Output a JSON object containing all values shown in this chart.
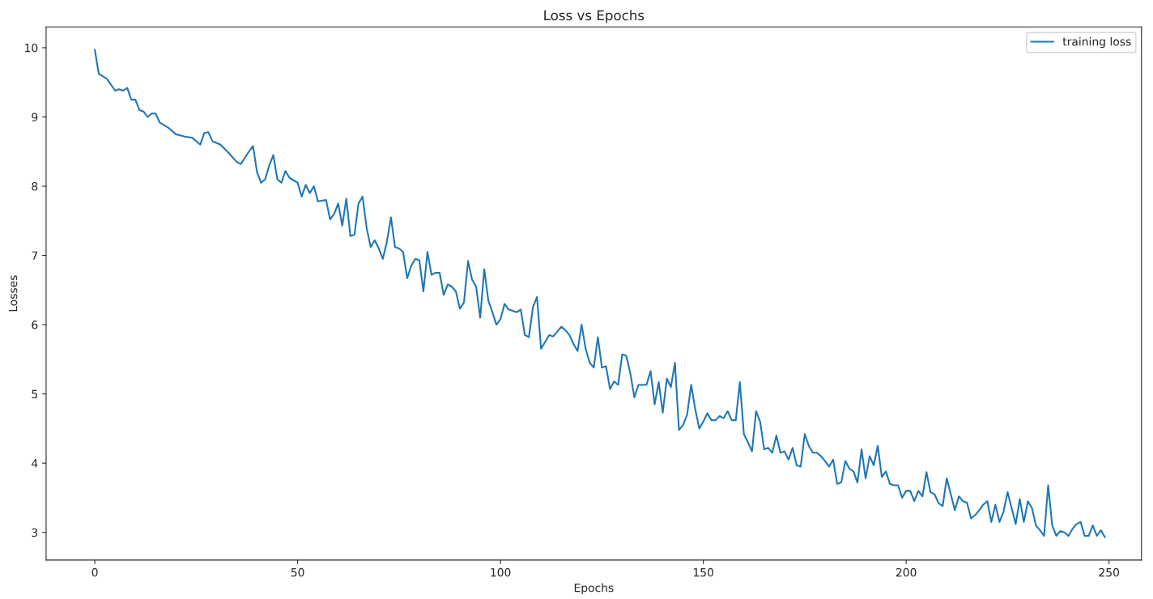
{
  "chart_data": {
    "type": "line",
    "title": "Loss vs Epochs",
    "xlabel": "Epochs",
    "ylabel": "Losses",
    "xlim": [
      -12,
      258
    ],
    "xticks": [
      0,
      50,
      100,
      150,
      200,
      250
    ],
    "ylim": [
      2.6,
      10.3
    ],
    "yticks": [
      3,
      4,
      5,
      6,
      7,
      8,
      9,
      10
    ],
    "grid": false,
    "legend": "top right",
    "series": [
      {
        "name": "training loss",
        "color": "#1f77b4",
        "x": [
          0,
          1,
          3,
          5,
          6,
          7,
          8,
          9,
          10,
          11,
          12,
          13,
          14,
          15,
          16,
          18,
          20,
          22,
          24,
          26,
          27,
          28,
          29,
          31,
          33,
          35,
          36,
          38,
          39,
          40,
          41,
          42,
          43,
          44,
          45,
          46,
          47,
          48,
          50,
          51,
          52,
          53,
          54,
          55,
          57,
          58,
          59,
          60,
          61,
          62,
          63,
          64,
          65,
          66,
          67,
          68,
          69,
          70,
          71,
          72,
          73,
          74,
          75,
          76,
          77,
          78,
          79,
          80,
          81,
          82,
          83,
          84,
          85,
          86,
          87,
          88,
          89,
          90,
          91,
          92,
          93,
          94,
          95,
          96,
          97,
          98,
          99,
          100,
          101,
          102,
          103,
          104,
          105,
          106,
          107,
          108,
          109,
          110,
          111,
          112,
          113,
          114,
          115,
          116,
          117,
          118,
          119,
          120,
          121,
          122,
          123,
          124,
          125,
          126,
          127,
          128,
          129,
          130,
          131,
          132,
          133,
          134,
          135,
          136,
          137,
          138,
          139,
          140,
          141,
          142,
          143,
          144,
          145,
          146,
          147,
          148,
          149,
          150,
          151,
          152,
          153,
          154,
          155,
          156,
          157,
          158,
          159,
          160,
          161,
          162,
          163,
          164,
          165,
          166,
          167,
          168,
          169,
          170,
          171,
          172,
          173,
          174,
          175,
          176,
          177,
          178,
          179,
          180,
          181,
          182,
          183,
          184,
          185,
          186,
          187,
          188,
          189,
          190,
          191,
          192,
          193,
          194,
          195,
          196,
          197,
          198,
          199,
          200,
          201,
          202,
          203,
          204,
          205,
          206,
          207,
          208,
          209,
          210,
          211,
          212,
          213,
          214,
          215,
          216,
          217,
          218,
          219,
          220,
          221,
          222,
          223,
          224,
          225,
          226,
          227,
          228,
          229,
          230,
          231,
          232,
          233,
          234,
          235,
          236,
          237,
          238,
          239,
          240,
          241,
          242,
          243,
          244,
          245,
          246,
          247,
          248,
          249
        ],
        "values": [
          9.97,
          9.62,
          9.55,
          9.38,
          9.4,
          9.38,
          9.42,
          9.25,
          9.25,
          9.1,
          9.08,
          9.0,
          9.05,
          9.05,
          8.92,
          8.85,
          8.75,
          8.72,
          8.7,
          8.6,
          8.77,
          8.78,
          8.65,
          8.6,
          8.48,
          8.35,
          8.32,
          8.5,
          8.58,
          8.2,
          8.05,
          8.1,
          8.3,
          8.45,
          8.1,
          8.05,
          8.22,
          8.12,
          8.05,
          7.85,
          8.02,
          7.9,
          8.0,
          7.78,
          7.8,
          7.52,
          7.6,
          7.75,
          7.43,
          7.82,
          7.28,
          7.3,
          7.75,
          7.85,
          7.4,
          7.12,
          7.22,
          7.1,
          6.95,
          7.2,
          7.55,
          7.12,
          7.1,
          7.05,
          6.67,
          6.85,
          6.95,
          6.93,
          6.48,
          7.05,
          6.72,
          6.75,
          6.75,
          6.43,
          6.58,
          6.55,
          6.48,
          6.23,
          6.32,
          6.92,
          6.65,
          6.55,
          6.1,
          6.8,
          6.35,
          6.18,
          6.0,
          6.08,
          6.3,
          6.22,
          6.2,
          6.18,
          6.22,
          5.85,
          5.82,
          6.25,
          6.4,
          5.65,
          5.75,
          5.85,
          5.83,
          5.9,
          5.97,
          5.92,
          5.85,
          5.72,
          5.62,
          6.0,
          5.65,
          5.45,
          5.38,
          5.82,
          5.38,
          5.4,
          5.07,
          5.18,
          5.13,
          5.57,
          5.55,
          5.3,
          4.95,
          5.13,
          5.13,
          5.13,
          5.33,
          4.85,
          5.17,
          4.73,
          5.22,
          5.1,
          5.45,
          4.48,
          4.55,
          4.7,
          5.13,
          4.78,
          4.5,
          4.6,
          4.72,
          4.62,
          4.62,
          4.68,
          4.65,
          4.75,
          4.62,
          4.62,
          5.17,
          4.42,
          4.3,
          4.17,
          4.75,
          4.6,
          4.2,
          4.22,
          4.15,
          4.4,
          4.15,
          4.17,
          4.05,
          4.22,
          3.97,
          3.95,
          4.42,
          4.25,
          4.15,
          4.15,
          4.1,
          4.03,
          3.95,
          4.05,
          3.7,
          3.72,
          4.03,
          3.92,
          3.88,
          3.72,
          4.2,
          3.78,
          4.1,
          3.97,
          4.25,
          3.8,
          3.88,
          3.7,
          3.68,
          3.68,
          3.5,
          3.6,
          3.6,
          3.45,
          3.6,
          3.52,
          3.87,
          3.58,
          3.55,
          3.42,
          3.38,
          3.78,
          3.55,
          3.32,
          3.52,
          3.45,
          3.43,
          3.2,
          3.25,
          3.32,
          3.4,
          3.45,
          3.15,
          3.4,
          3.15,
          3.3,
          3.58,
          3.35,
          3.12,
          3.48,
          3.15,
          3.45,
          3.35,
          3.1,
          3.03,
          2.95,
          3.68,
          3.1,
          2.95,
          3.02,
          3.0,
          2.95,
          3.05,
          3.12,
          3.15,
          2.95,
          2.95,
          3.1,
          2.95,
          3.03,
          2.93
        ]
      }
    ]
  }
}
